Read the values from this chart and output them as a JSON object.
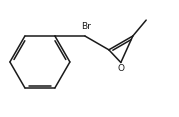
{
  "background_color": "#ffffff",
  "bond_color": "#1a1a1a",
  "text_color": "#1a1a1a",
  "br_label": "Br",
  "o_label": "O",
  "figure_width": 1.79,
  "figure_height": 1.17,
  "dpi": 100,
  "lw": 1.1
}
